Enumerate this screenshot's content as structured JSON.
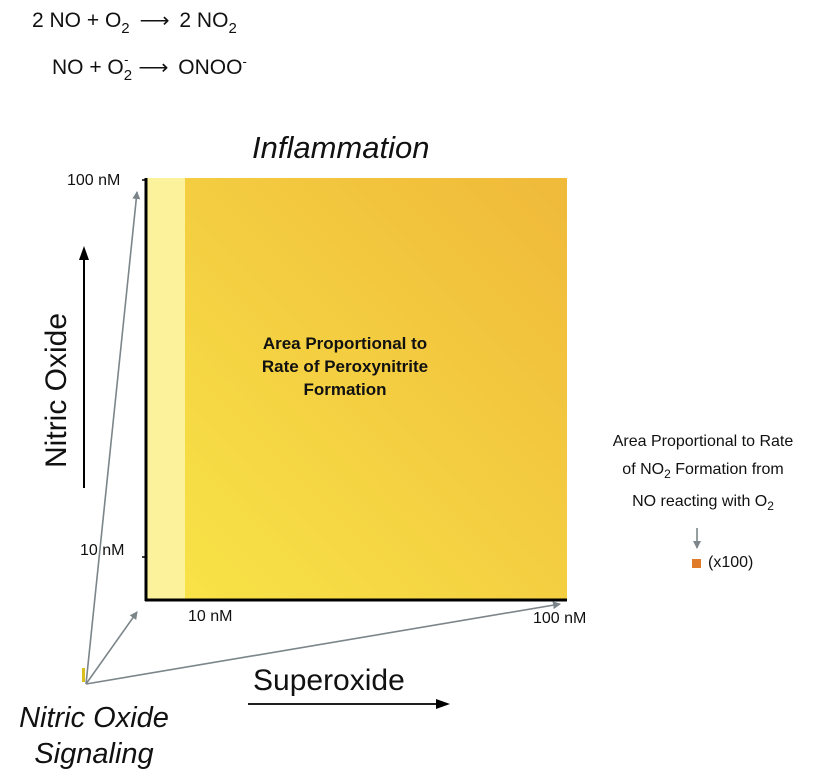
{
  "equations": {
    "eq1": {
      "left": "2 NO + O",
      "left_sub": "2",
      "right": "2 NO",
      "right_sub": "2"
    },
    "eq2": {
      "left": "NO + O",
      "left_sub": "2",
      "left_sup": "-",
      "right": "ONOO",
      "right_sup": "-"
    }
  },
  "diagram": {
    "title": "Inflammation",
    "y_axis_label": "Nitric Oxide",
    "x_axis_label": "Superoxide",
    "y_tick_high": "100 nM",
    "y_tick_low": "10 nM",
    "x_tick_low": "10 nM",
    "x_tick_high": "100 nM",
    "center_label": {
      "line1": "Area Proportional to",
      "line2": "Rate of Peroxynitrite",
      "line3": "Formation"
    },
    "corner_label": {
      "line1": "Nitric Oxide",
      "line2": "Signaling"
    }
  },
  "side_note": {
    "line1": "Area Proportional to Rate",
    "line2_pre": "of NO",
    "line2_sub": "2",
    "line2_post": " Formation from",
    "line3_pre": "NO reacting with O",
    "line3_sub": "2",
    "marker_label": "(x100)"
  },
  "colors": {
    "fill_main": "#f2c233",
    "fill_light": "#fdf29c",
    "marker": "#e07b2a",
    "axis": "#000000",
    "projection": "#7c8589"
  }
}
